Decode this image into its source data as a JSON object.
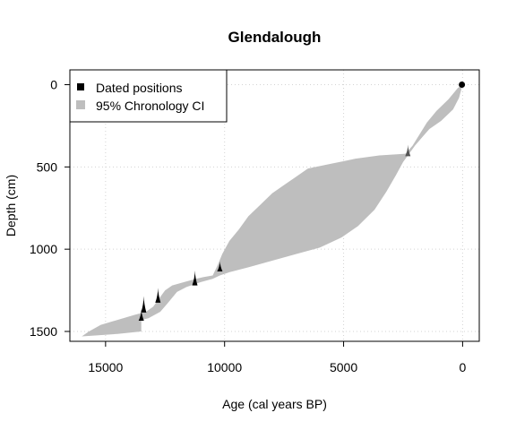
{
  "chart_data": {
    "type": "area",
    "title": "Glendalough",
    "xlabel": "Age (cal years BP)",
    "ylabel": "Depth (cm)",
    "xlim": [
      16500,
      -700
    ],
    "ylim": [
      1560,
      -90
    ],
    "x_ticks": [
      15000,
      10000,
      5000,
      0
    ],
    "x_tick_labels": [
      "15000",
      "10000",
      "5000",
      "0"
    ],
    "y_ticks": [
      0,
      500,
      1000,
      1500
    ],
    "y_tick_labels": [
      "0",
      "500",
      "1000",
      "1500"
    ],
    "grid": true,
    "legend_position": "top-left",
    "legend": [
      {
        "label": "Dated positions",
        "marker": "square",
        "color": "#000000"
      },
      {
        "label": "95% Chronology CI",
        "marker": "square",
        "color": "#bebebe"
      }
    ],
    "series": [
      {
        "name": "95% Chronology CI",
        "color": "#bebebe",
        "ci_older": [
          [
            0,
            0
          ],
          [
            150,
            80
          ],
          [
            400,
            150
          ],
          [
            900,
            220
          ],
          [
            1400,
            270
          ],
          [
            1700,
            320
          ],
          [
            2000,
            370
          ],
          [
            2200,
            410
          ],
          [
            2500,
            470
          ],
          [
            2800,
            550
          ],
          [
            3200,
            650
          ],
          [
            3700,
            760
          ],
          [
            4400,
            860
          ],
          [
            5100,
            930
          ],
          [
            6000,
            990
          ],
          [
            7000,
            1030
          ],
          [
            8000,
            1070
          ],
          [
            9000,
            1110
          ],
          [
            9800,
            1140
          ],
          [
            10200,
            1160
          ],
          [
            10500,
            1180
          ],
          [
            11000,
            1200
          ],
          [
            11600,
            1230
          ],
          [
            12000,
            1260
          ],
          [
            12400,
            1330
          ],
          [
            12700,
            1380
          ],
          [
            13200,
            1420
          ],
          [
            13500,
            1430
          ],
          [
            13500,
            1500
          ],
          [
            14500,
            1515
          ],
          [
            15500,
            1525
          ],
          [
            16000,
            1530
          ]
        ],
        "ci_younger": [
          [
            0,
            0
          ],
          [
            200,
            20
          ],
          [
            600,
            90
          ],
          [
            1100,
            160
          ],
          [
            1500,
            230
          ],
          [
            1800,
            300
          ],
          [
            2100,
            370
          ],
          [
            2400,
            420
          ],
          [
            3500,
            430
          ],
          [
            4500,
            450
          ],
          [
            5500,
            480
          ],
          [
            6500,
            510
          ],
          [
            7000,
            560
          ],
          [
            7500,
            610
          ],
          [
            8000,
            660
          ],
          [
            8500,
            730
          ],
          [
            9000,
            800
          ],
          [
            9400,
            880
          ],
          [
            9800,
            950
          ],
          [
            10100,
            1030
          ],
          [
            10300,
            1100
          ],
          [
            10500,
            1160
          ],
          [
            10900,
            1170
          ],
          [
            11200,
            1180
          ],
          [
            11700,
            1200
          ],
          [
            12200,
            1220
          ],
          [
            12500,
            1250
          ],
          [
            12700,
            1290
          ],
          [
            13000,
            1350
          ],
          [
            13300,
            1380
          ],
          [
            13800,
            1400
          ],
          [
            14500,
            1430
          ],
          [
            15200,
            1460
          ],
          [
            15700,
            1500
          ],
          [
            16000,
            1530
          ]
        ]
      }
    ],
    "dated_positions": [
      {
        "depth": 0,
        "age": 30,
        "type": "point"
      },
      {
        "depth": 400,
        "age": 2300,
        "type": "spike",
        "color": "#555555",
        "height": 70
      },
      {
        "depth": 1105,
        "age": 10200,
        "type": "spike",
        "color": "#000000",
        "height": 60
      },
      {
        "depth": 1175,
        "age": 11250,
        "type": "spike",
        "color": "#000000",
        "height": 90
      },
      {
        "depth": 1280,
        "age": 12800,
        "type": "spike",
        "color": "#000000",
        "height": 90
      },
      {
        "depth": 1335,
        "age": 13400,
        "type": "spike",
        "color": "#000000",
        "height": 100
      },
      {
        "depth": 1400,
        "age": 13500,
        "type": "spike",
        "color": "#000000",
        "height": 70
      }
    ]
  }
}
